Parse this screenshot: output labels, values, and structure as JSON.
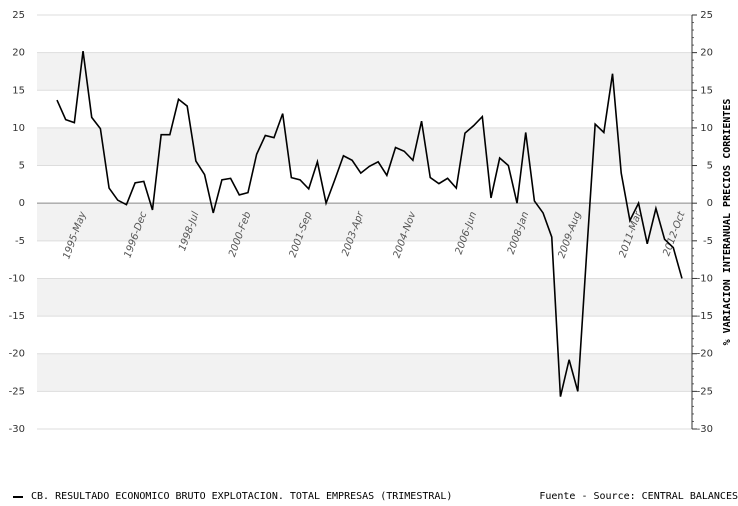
{
  "chart_data": {
    "type": "line",
    "categories": [
      null,
      null,
      null,
      "1995-May",
      null,
      null,
      null,
      null,
      null,
      null,
      "1996-Dec",
      null,
      null,
      null,
      null,
      null,
      "1998-Jul",
      null,
      null,
      null,
      null,
      null,
      "2000-Feb",
      null,
      null,
      null,
      null,
      null,
      null,
      "2001-Sep",
      null,
      null,
      null,
      null,
      null,
      "2003-Apr",
      null,
      null,
      null,
      null,
      null,
      "2004-Nov",
      null,
      null,
      null,
      null,
      null,
      null,
      "2006-Jun",
      null,
      null,
      null,
      null,
      null,
      "2008-Jan",
      null,
      null,
      null,
      null,
      null,
      "2009-Aug",
      null,
      null,
      null,
      null,
      null,
      null,
      "2011-Mar",
      null,
      null,
      null,
      null,
      "2012-Oct"
    ],
    "series": [
      {
        "name": "CB. RESULTADO ECONOMICO BRUTO EXPLOTACION. TOTAL EMPRESAS (TRIMESTRAL)",
        "color": "#000000",
        "values": [
          13.7,
          11.1,
          10.7,
          20.2,
          11.4,
          9.9,
          2.0,
          0.4,
          -0.2,
          2.7,
          2.9,
          -0.9,
          9.1,
          9.1,
          13.8,
          12.9,
          5.6,
          3.8,
          -1.3,
          3.1,
          3.3,
          1.1,
          1.4,
          6.5,
          9.0,
          8.7,
          11.9,
          3.4,
          3.1,
          1.9,
          5.5,
          0.0,
          3.1,
          6.3,
          5.7,
          4.0,
          4.9,
          5.5,
          3.7,
          7.4,
          6.9,
          5.7,
          10.9,
          3.4,
          2.6,
          3.3,
          2.0,
          9.3,
          10.3,
          11.5,
          0.7,
          6.0,
          5.0,
          0.0,
          9.4,
          0.3,
          -1.3,
          -4.5,
          -25.7,
          -20.8,
          -25.0,
          -7.0,
          10.5,
          9.4,
          17.2,
          4.0,
          -2.3,
          0.0,
          -5.4,
          -0.7,
          -4.8,
          -5.9,
          -10.0
        ]
      }
    ],
    "ylim": [
      -30,
      25
    ],
    "yticks": [
      -30,
      -25,
      -20,
      -15,
      -10,
      -5,
      0,
      5,
      10,
      15,
      20,
      25
    ],
    "y2label": "% VARIACION INTERANUAL PRECIOS CORRIENTES",
    "y2lim": [
      -30,
      25
    ],
    "y2ticks": [
      -30,
      -25,
      -20,
      -15,
      -10,
      -5,
      0,
      5,
      10,
      15,
      20,
      25
    ],
    "grid": true,
    "source": "Fuente - Source: CENTRAL BALANCES"
  }
}
